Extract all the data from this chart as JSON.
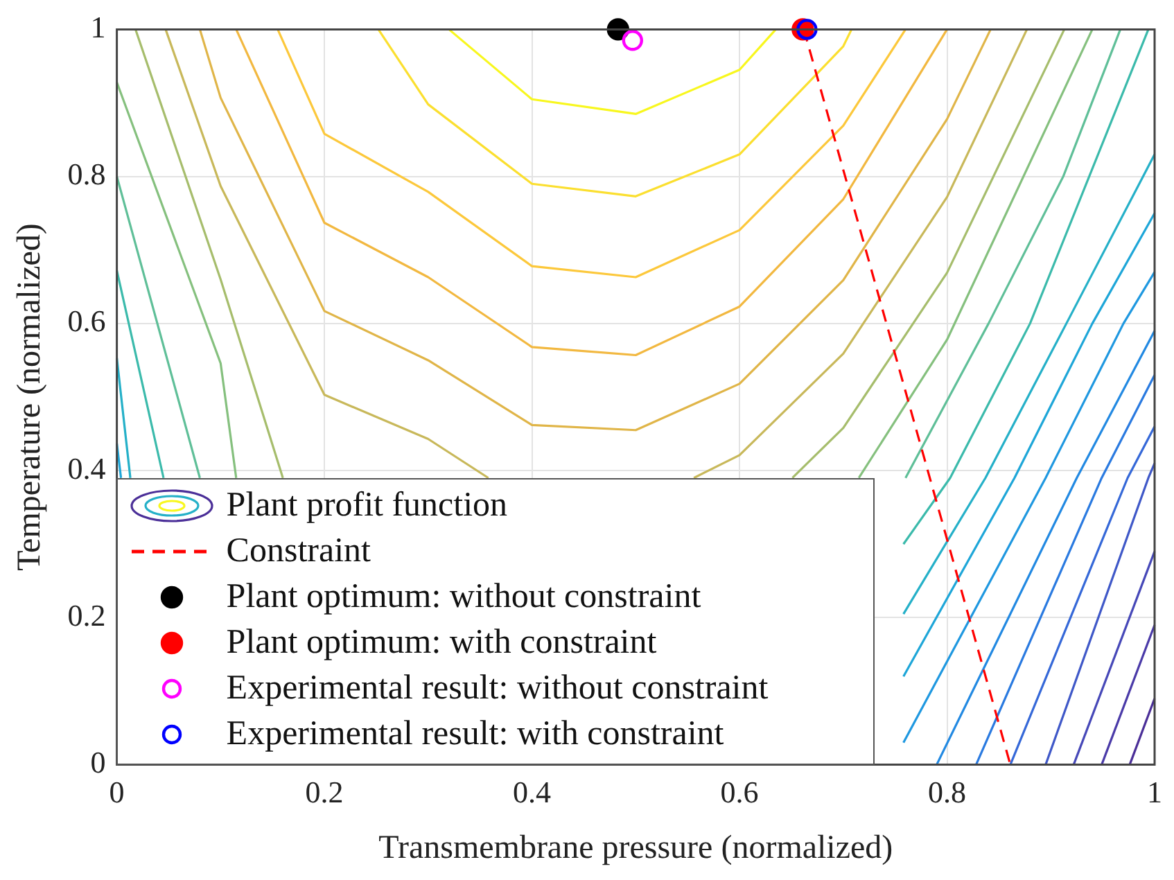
{
  "chart_data": {
    "type": "line",
    "xlabel": "Transmembrane pressure (normalized)",
    "ylabel": "Temperature (normalized)",
    "xlim": [
      0,
      1
    ],
    "xticks": [
      0,
      0.2,
      0.4,
      0.6,
      0.8,
      1
    ],
    "ylim": [
      0,
      1
    ],
    "yticks": [
      0,
      0.2,
      0.4,
      0.6,
      0.8,
      1
    ],
    "grid": true,
    "legend": "bottom left",
    "marker": "none",
    "series": [
      {
        "name": "Plant profit function",
        "color": "#f8f71e",
        "x": [
          0.32,
          0.4,
          0.5,
          0.6,
          0.635
        ],
        "values": [
          1,
          0.905,
          0.885,
          0.945,
          1
        ]
      },
      {
        "color": "#fbdf2f",
        "x": [
          0.252,
          0.3,
          0.4,
          0.5,
          0.6,
          0.7,
          0.708
        ],
        "values": [
          1,
          0.898,
          0.79,
          0.773,
          0.83,
          0.977,
          1
        ]
      },
      {
        "color": "#fcc83b",
        "x": [
          0.155,
          0.2,
          0.3,
          0.4,
          0.5,
          0.6,
          0.7,
          0.76
        ],
        "values": [
          1,
          0.858,
          0.779,
          0.678,
          0.663,
          0.727,
          0.869,
          1
        ]
      },
      {
        "color": "#f2b840",
        "x": [
          0.115,
          0.2,
          0.3,
          0.4,
          0.5,
          0.6,
          0.7,
          0.8
        ],
        "values": [
          1,
          0.737,
          0.663,
          0.568,
          0.557,
          0.623,
          0.769,
          1
        ]
      },
      {
        "color": "#e0b548",
        "x": [
          0.08,
          0.1,
          0.2,
          0.3,
          0.4,
          0.5,
          0.6,
          0.7,
          0.8,
          0.842
        ],
        "values": [
          1,
          0.907,
          0.617,
          0.55,
          0.462,
          0.455,
          0.518,
          0.659,
          0.878,
          1
        ]
      },
      {
        "color": "#c8b85a",
        "x": [
          0.047,
          0.1,
          0.2,
          0.3,
          0.358,
          null,
          0.556,
          0.6,
          0.7,
          0.8,
          0.877
        ],
        "values": [
          1,
          0.787,
          0.503,
          0.443,
          0.39,
          null,
          0.39,
          0.421,
          0.559,
          0.772,
          1
        ]
      },
      {
        "color": "#a6bd6c",
        "x": [
          0.018,
          0.1,
          0.16,
          null,
          0.651,
          0.7,
          0.8,
          0.913
        ],
        "values": [
          1,
          0.66,
          0.39,
          null,
          0.39,
          0.458,
          0.669,
          1
        ]
      },
      {
        "color": "#85c07e",
        "x": [
          0,
          0.1,
          0.115,
          null,
          0.715,
          0.8,
          0.94
        ],
        "values": [
          0.928,
          0.546,
          0.39,
          null,
          0.39,
          0.578,
          1
        ]
      },
      {
        "color": "#5fbf98",
        "x": [
          0,
          0.08,
          null,
          0.76,
          0.84,
          0.912,
          0.967
        ],
        "values": [
          0.8,
          0.39,
          null,
          0.39,
          0.6,
          0.8,
          1
        ]
      },
      {
        "color": "#3bbaab",
        "x": [
          0,
          0.045,
          null,
          0.758,
          0.803,
          0.88,
          0.994
        ],
        "values": [
          0.672,
          0.39,
          null,
          0.3,
          0.39,
          0.6,
          1
        ]
      },
      {
        "color": "#25b0c8",
        "x": [
          0,
          0.013,
          null,
          0.758,
          0.837,
          0.915,
          1
        ],
        "values": [
          0.553,
          0.39,
          null,
          0.205,
          0.39,
          0.6,
          0.83
        ]
      },
      {
        "color": "#1ea6d8",
        "x": [
          0,
          0.004,
          null,
          0.758,
          0.865,
          0.94,
          1
        ],
        "values": [
          0.437,
          0.39,
          null,
          0.12,
          0.39,
          0.6,
          0.75
        ]
      },
      {
        "color": "#1f98e0",
        "x": [
          0.758,
          0.895,
          0.97,
          1
        ],
        "values": [
          0.03,
          0.39,
          0.6,
          0.67
        ]
      },
      {
        "color": "#2289e2",
        "x": [
          0.79,
          0.925,
          1
        ],
        "values": [
          0,
          0.39,
          0.59
        ]
      },
      {
        "color": "#2a7ae0",
        "x": [
          0.828,
          0.949,
          1
        ],
        "values": [
          0,
          0.39,
          0.53
        ]
      },
      {
        "color": "#3568d8",
        "x": [
          0.861,
          0.974,
          1
        ],
        "values": [
          0,
          0.39,
          0.46
        ]
      },
      {
        "color": "#3f58c8",
        "x": [
          0.895,
          0.994,
          1
        ],
        "values": [
          0,
          0.39,
          0.41
        ]
      },
      {
        "color": "#4648b8",
        "x": [
          0.922,
          1
        ],
        "values": [
          0,
          0.29
        ]
      },
      {
        "color": "#4a3aa8",
        "x": [
          0.949,
          1
        ],
        "values": [
          0,
          0.19
        ]
      },
      {
        "color": "#4b2f98",
        "x": [
          0.976,
          1
        ],
        "values": [
          0,
          0.09
        ]
      },
      {
        "name": "Constraint",
        "color": "#ff0000",
        "line_style": "dashed",
        "x": [
          0.662,
          0.861
        ],
        "values": [
          1,
          0
        ]
      },
      {
        "name": "Plant optimum: without constraint",
        "type": "scatter",
        "marker": "circle",
        "color": "#000000",
        "x": [
          0.483
        ],
        "values": [
          1
        ]
      },
      {
        "name": "Plant optimum: with constraint",
        "type": "scatter",
        "marker": "circle",
        "color": "#ff0000",
        "x": [
          0.661
        ],
        "values": [
          1
        ]
      },
      {
        "name": "Experimental result: without constraint",
        "type": "scatter",
        "marker": "circle-open",
        "color": "#ff00ff",
        "x": [
          0.497
        ],
        "values": [
          0.985
        ]
      },
      {
        "name": "Experimental result: with constraint",
        "type": "scatter",
        "marker": "circle-open",
        "color": "#0000ff",
        "x": [
          0.665
        ],
        "values": [
          1
        ]
      }
    ]
  }
}
